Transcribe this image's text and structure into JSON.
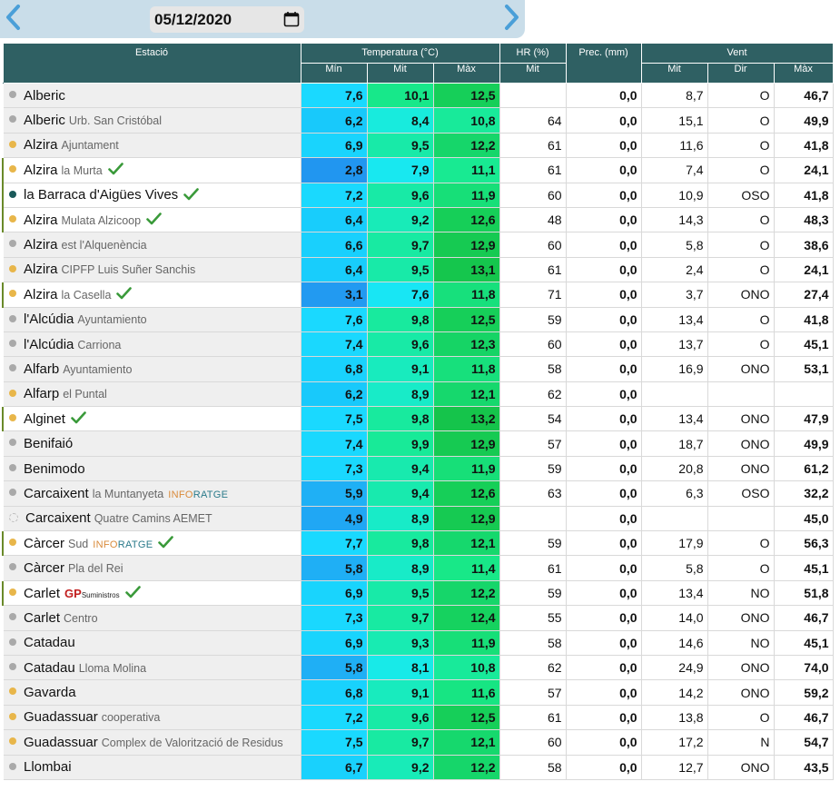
{
  "date": "05/12/2020",
  "icons": {
    "prev": "chevron-left-icon",
    "next": "chevron-right-icon",
    "calendar": "calendar-icon",
    "verified": "check-icon"
  },
  "colors": {
    "header_bg": "#2f6063",
    "accent_blue": "#4a9fd8",
    "fav_border": "#6a8a2a"
  },
  "headers": {
    "station": "Estació",
    "temperature": "Temperatura (°C)",
    "humidity": "HR (%)",
    "precip": "Prec. (mm)",
    "wind": "Vent",
    "t_min": "Mín",
    "t_mid": "Mit",
    "t_max": "Màx",
    "hr_mid": "Mit",
    "w_mid": "Mit",
    "w_dir": "Dir",
    "w_max": "Màx"
  },
  "rows": [
    {
      "name": "Alberic",
      "sub": "",
      "dot": "grey",
      "fav": false,
      "check": false,
      "brand": "",
      "tmin": "7,6",
      "tmit": "10,1",
      "tmax": "12,5",
      "hr": "",
      "prec": "0,0",
      "wmit": "8,7",
      "wdir": "O",
      "wmax": "46,7",
      "cmin": "#1ad9ff",
      "cmit": "#17e88a",
      "cmax": "#16cf59"
    },
    {
      "name": "Alberic",
      "sub": "Urb. San Cristóbal",
      "dot": "grey",
      "fav": false,
      "check": false,
      "brand": "",
      "tmin": "6,2",
      "tmit": "8,4",
      "tmax": "10,8",
      "hr": "64",
      "prec": "0,0",
      "wmit": "15,1",
      "wdir": "O",
      "wmax": "49,9",
      "cmin": "#18c9fb",
      "cmit": "#18ebdd",
      "cmax": "#18ea9a"
    },
    {
      "name": "Alzira",
      "sub": "Ajuntament",
      "dot": "yellow",
      "fav": false,
      "check": false,
      "brand": "",
      "tmin": "6,9",
      "tmit": "9,5",
      "tmax": "12,2",
      "hr": "61",
      "prec": "0,0",
      "wmit": "11,6",
      "wdir": "O",
      "wmax": "41,8",
      "cmin": "#19d4fd",
      "cmit": "#18eaa8",
      "cmax": "#16d66a"
    },
    {
      "name": "Alzira",
      "sub": "la Murta",
      "dot": "yellow",
      "fav": true,
      "check": true,
      "brand": "",
      "tmin": "2,8",
      "tmit": "7,9",
      "tmax": "11,1",
      "hr": "61",
      "prec": "0,0",
      "wmit": "7,4",
      "wdir": "O",
      "wmax": "24,1",
      "cmin": "#2196f0",
      "cmit": "#18e8f0",
      "cmax": "#18ea92"
    },
    {
      "name": "la Barraca d'Aigües Vives",
      "sub": "",
      "dot": "teal",
      "fav": true,
      "check": true,
      "brand": "",
      "tmin": "7,2",
      "tmit": "9,6",
      "tmax": "11,9",
      "hr": "60",
      "prec": "0,0",
      "wmit": "10,9",
      "wdir": "OSO",
      "wmax": "41,8",
      "cmin": "#1ad9fe",
      "cmit": "#18eaa6",
      "cmax": "#17df78"
    },
    {
      "name": "Alzira",
      "sub": "Mulata Alzicoop",
      "dot": "yellow",
      "fav": true,
      "check": true,
      "brand": "",
      "tmin": "6,4",
      "tmit": "9,2",
      "tmax": "12,6",
      "hr": "48",
      "prec": "0,0",
      "wmit": "14,3",
      "wdir": "O",
      "wmax": "48,3",
      "cmin": "#18cdfc",
      "cmit": "#18ebb8",
      "cmax": "#16cf58"
    },
    {
      "name": "Alzira",
      "sub": "est l'Alquenència",
      "dot": "grey",
      "fav": false,
      "check": false,
      "brand": "",
      "tmin": "6,6",
      "tmit": "9,7",
      "tmax": "12,9",
      "hr": "60",
      "prec": "0,0",
      "wmit": "5,8",
      "wdir": "O",
      "wmax": "38,6",
      "cmin": "#19d0fd",
      "cmit": "#18eaa2",
      "cmax": "#16ca52"
    },
    {
      "name": "Alzira",
      "sub": "CIPFP Luis Suñer Sanchis",
      "dot": "yellow",
      "fav": false,
      "check": false,
      "brand": "",
      "tmin": "6,4",
      "tmit": "9,5",
      "tmax": "13,1",
      "hr": "61",
      "prec": "0,0",
      "wmit": "2,4",
      "wdir": "O",
      "wmax": "24,1",
      "cmin": "#18cdfc",
      "cmit": "#18eaa8",
      "cmax": "#15c64d"
    },
    {
      "name": "Alzira",
      "sub": "la Casella",
      "dot": "yellow",
      "fav": true,
      "check": true,
      "brand": "",
      "tmin": "3,1",
      "tmit": "7,6",
      "tmax": "11,8",
      "hr": "71",
      "prec": "0,0",
      "wmit": "3,7",
      "wdir": "ONO",
      "wmax": "27,4",
      "cmin": "#229af1",
      "cmit": "#18e6f4",
      "cmax": "#17e07c"
    },
    {
      "name": "l'Alcúdia",
      "sub": "Ayuntamiento",
      "dot": "grey",
      "fav": false,
      "check": false,
      "brand": "",
      "tmin": "7,6",
      "tmit": "9,8",
      "tmax": "12,5",
      "hr": "59",
      "prec": "0,0",
      "wmit": "13,4",
      "wdir": "O",
      "wmax": "41,8",
      "cmin": "#1ad9ff",
      "cmit": "#18ea9e",
      "cmax": "#16cf59"
    },
    {
      "name": "l'Alcúdia",
      "sub": "Carriona",
      "dot": "grey",
      "fav": false,
      "check": false,
      "brand": "",
      "tmin": "7,4",
      "tmit": "9,6",
      "tmax": "12,3",
      "hr": "60",
      "prec": "0,0",
      "wmit": "13,7",
      "wdir": "O",
      "wmax": "45,1",
      "cmin": "#1ad8fe",
      "cmit": "#18eaa6",
      "cmax": "#16d465"
    },
    {
      "name": "Alfarb",
      "sub": "Ayuntamiento",
      "dot": "grey",
      "fav": false,
      "check": false,
      "brand": "",
      "tmin": "6,8",
      "tmit": "9,1",
      "tmax": "11,8",
      "hr": "58",
      "prec": "0,0",
      "wmit": "16,9",
      "wdir": "ONO",
      "wmax": "53,1",
      "cmin": "#19d2fd",
      "cmit": "#18ebbe",
      "cmax": "#17e07c"
    },
    {
      "name": "Alfarp",
      "sub": "el Puntal",
      "dot": "yellow",
      "fav": false,
      "check": false,
      "brand": "",
      "tmin": "6,2",
      "tmit": "8,9",
      "tmax": "12,1",
      "hr": "62",
      "prec": "0,0",
      "wmit": "",
      "wdir": "",
      "wmax": "",
      "cmin": "#18c9fb",
      "cmit": "#18ebc8",
      "cmax": "#16d86d"
    },
    {
      "name": "Alginet",
      "sub": "",
      "dot": "yellow",
      "fav": true,
      "check": true,
      "brand": "",
      "tmin": "7,5",
      "tmit": "9,8",
      "tmax": "13,2",
      "hr": "54",
      "prec": "0,0",
      "wmit": "13,4",
      "wdir": "ONO",
      "wmax": "47,9",
      "cmin": "#1ad9ff",
      "cmit": "#18ea9e",
      "cmax": "#15c44b"
    },
    {
      "name": "Benifaió",
      "sub": "",
      "dot": "grey",
      "fav": false,
      "check": false,
      "brand": "",
      "tmin": "7,4",
      "tmit": "9,9",
      "tmax": "12,9",
      "hr": "57",
      "prec": "0,0",
      "wmit": "18,7",
      "wdir": "ONO",
      "wmax": "49,9",
      "cmin": "#1ad8fe",
      "cmit": "#18ea98",
      "cmax": "#16ca52"
    },
    {
      "name": "Benimodo",
      "sub": "",
      "dot": "grey",
      "fav": false,
      "check": false,
      "brand": "",
      "tmin": "7,3",
      "tmit": "9,4",
      "tmax": "11,9",
      "hr": "59",
      "prec": "0,0",
      "wmit": "20,8",
      "wdir": "ONO",
      "wmax": "61,2",
      "cmin": "#1ad8fe",
      "cmit": "#18eaae",
      "cmax": "#17df78"
    },
    {
      "name": "Carcaixent",
      "sub": "la Muntanyeta",
      "dot": "grey",
      "fav": false,
      "check": false,
      "brand": "inforatge",
      "tmin": "5,9",
      "tmit": "9,4",
      "tmax": "12,6",
      "hr": "63",
      "prec": "0,0",
      "wmit": "6,3",
      "wdir": "OSO",
      "wmax": "32,2",
      "cmin": "#1fb0f5",
      "cmit": "#18eaae",
      "cmax": "#16cf58"
    },
    {
      "name": "Carcaixent",
      "sub": "Quatre Camins AEMET",
      "dot": "hollow",
      "fav": false,
      "check": false,
      "brand": "",
      "tmin": "4,9",
      "tmit": "8,9",
      "tmax": "12,9",
      "hr": "",
      "prec": "0,0",
      "wmit": "",
      "wdir": "",
      "wmax": "45,0",
      "cmin": "#20a7f4",
      "cmit": "#18ebc8",
      "cmax": "#16ca52"
    },
    {
      "name": "Càrcer",
      "sub": "Sud",
      "dot": "yellow",
      "fav": true,
      "check": true,
      "brand": "inforatge",
      "tmin": "7,7",
      "tmit": "9,8",
      "tmax": "12,1",
      "hr": "59",
      "prec": "0,0",
      "wmit": "17,9",
      "wdir": "O",
      "wmax": "56,3",
      "cmin": "#1ad9ff",
      "cmit": "#18ea9e",
      "cmax": "#16d86d"
    },
    {
      "name": "Càrcer",
      "sub": "Pla del Rei",
      "dot": "grey",
      "fav": false,
      "check": false,
      "brand": "",
      "tmin": "5,8",
      "tmit": "8,9",
      "tmax": "11,4",
      "hr": "61",
      "prec": "0,0",
      "wmit": "5,8",
      "wdir": "O",
      "wmax": "45,1",
      "cmin": "#1faff5",
      "cmit": "#18ebc8",
      "cmax": "#18e888"
    },
    {
      "name": "Carlet",
      "sub": "",
      "dot": "yellow",
      "fav": true,
      "check": true,
      "brand": "gp",
      "tmin": "6,9",
      "tmit": "9,5",
      "tmax": "12,2",
      "hr": "59",
      "prec": "0,0",
      "wmit": "13,4",
      "wdir": "NO",
      "wmax": "51,8",
      "cmin": "#19d4fd",
      "cmit": "#18eaa8",
      "cmax": "#16d66a"
    },
    {
      "name": "Carlet",
      "sub": "Centro",
      "dot": "grey",
      "fav": false,
      "check": false,
      "brand": "",
      "tmin": "7,3",
      "tmit": "9,7",
      "tmax": "12,4",
      "hr": "55",
      "prec": "0,0",
      "wmit": "14,0",
      "wdir": "ONO",
      "wmax": "46,7",
      "cmin": "#1ad8fe",
      "cmit": "#18eaa2",
      "cmax": "#16d25f"
    },
    {
      "name": "Catadau",
      "sub": "",
      "dot": "grey",
      "fav": false,
      "check": false,
      "brand": "",
      "tmin": "6,9",
      "tmit": "9,3",
      "tmax": "11,9",
      "hr": "58",
      "prec": "0,0",
      "wmit": "14,6",
      "wdir": "NO",
      "wmax": "45,1",
      "cmin": "#19d4fd",
      "cmit": "#18ebb2",
      "cmax": "#17df78"
    },
    {
      "name": "Catadau",
      "sub": "Lloma Molina",
      "dot": "grey",
      "fav": false,
      "check": false,
      "brand": "",
      "tmin": "5,8",
      "tmit": "8,1",
      "tmax": "10,8",
      "hr": "62",
      "prec": "0,0",
      "wmit": "24,9",
      "wdir": "ONO",
      "wmax": "74,0",
      "cmin": "#1faff5",
      "cmit": "#18eae8",
      "cmax": "#18ea9a"
    },
    {
      "name": "Gavarda",
      "sub": "",
      "dot": "yellow",
      "fav": false,
      "check": false,
      "brand": "",
      "tmin": "6,8",
      "tmit": "9,1",
      "tmax": "11,6",
      "hr": "57",
      "prec": "0,0",
      "wmit": "14,2",
      "wdir": "ONO",
      "wmax": "59,2",
      "cmin": "#19d2fd",
      "cmit": "#18ebbe",
      "cmax": "#17e583"
    },
    {
      "name": "Guadassuar",
      "sub": "cooperativa",
      "dot": "yellow",
      "fav": false,
      "check": false,
      "brand": "",
      "tmin": "7,2",
      "tmit": "9,6",
      "tmax": "12,5",
      "hr": "61",
      "prec": "0,0",
      "wmit": "13,8",
      "wdir": "O",
      "wmax": "46,7",
      "cmin": "#1ad9fe",
      "cmit": "#18eaa6",
      "cmax": "#16cf59"
    },
    {
      "name": "Guadassuar",
      "sub": "Complex de Valorització de Residus",
      "dot": "yellow",
      "fav": false,
      "check": false,
      "brand": "",
      "tmin": "7,5",
      "tmit": "9,7",
      "tmax": "12,1",
      "hr": "60",
      "prec": "0,0",
      "wmit": "17,2",
      "wdir": "N",
      "wmax": "54,7",
      "cmin": "#1ad9ff",
      "cmit": "#18eaa2",
      "cmax": "#16d86d"
    },
    {
      "name": "Llombai",
      "sub": "",
      "dot": "grey",
      "fav": false,
      "check": false,
      "brand": "",
      "tmin": "6,7",
      "tmit": "9,2",
      "tmax": "12,2",
      "hr": "58",
      "prec": "0,0",
      "wmit": "12,7",
      "wdir": "ONO",
      "wmax": "43,5",
      "cmin": "#19d1fd",
      "cmit": "#18ebb8",
      "cmax": "#16d66a"
    }
  ],
  "brands": {
    "inforatge_a": "INFO",
    "inforatge_b": "RATGE",
    "gp_a": "GP",
    "gp_b": "Suministros"
  }
}
